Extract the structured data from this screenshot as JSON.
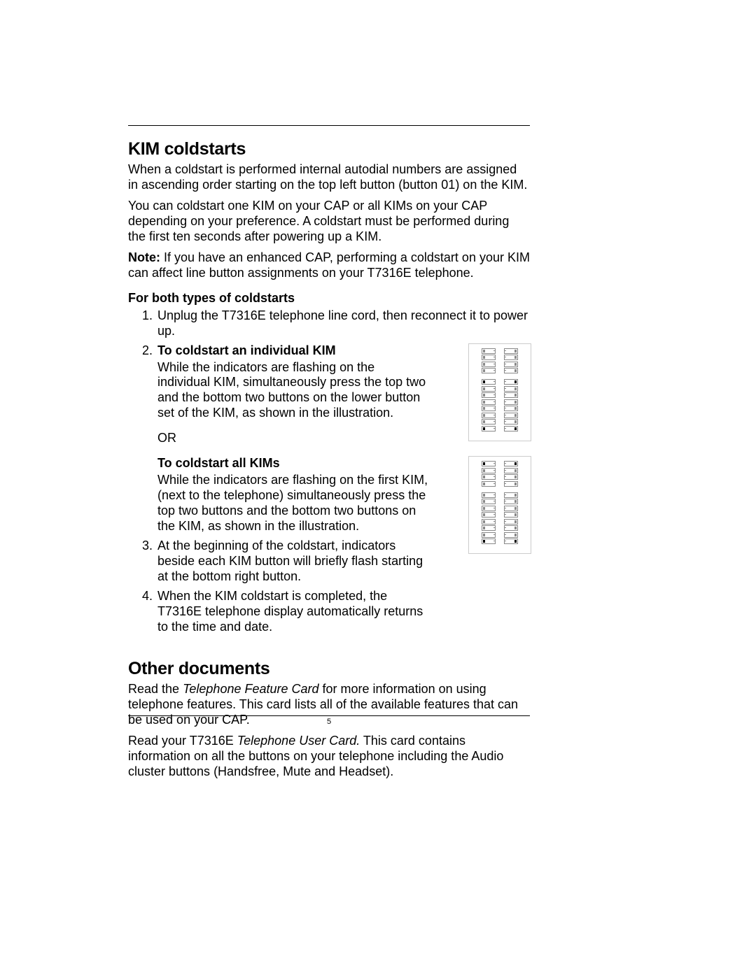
{
  "page": {
    "number": "5"
  },
  "kim": {
    "heading": "KIM coldstarts",
    "p1": "When a coldstart is performed internal autodial numbers are assigned in ascending order starting on the top left button (button 01) on the KIM.",
    "p2": "You can coldstart one KIM on your CAP or all KIMs on your CAP depending on your preference. A coldstart must be performed during the first ten seconds after powering up a KIM.",
    "note_label": "Note:",
    "note_text": "  If you have an enhanced CAP, performing a coldstart on your KIM can affect line button assignments on your T7316E telephone.",
    "both_heading": "For both types of coldstarts",
    "step1": "Unplug the T7316E telephone line cord, then reconnect it to power up.",
    "step2_title": "To coldstart an individual KIM",
    "step2_body": "While the indicators are flashing on the individual KIM, simultaneously press the top two and the bottom two buttons on the lower button set of the KIM, as shown in the illustration.",
    "or": "OR",
    "step2b_title": "To coldstart all KIMs",
    "step2b_body": "While the indicators are flashing on the first KIM, (next to the telephone) simultaneously press the top two buttons and the bottom two buttons on the KIM, as shown in the illustration.",
    "step3": "At the beginning of the coldstart, indicators beside each KIM button will briefly flash starting at the bottom right button.",
    "step4": "When the KIM coldstart is completed, the T7316E telephone display automatically returns to the time and date."
  },
  "other": {
    "heading": "Other documents",
    "p1a": "Read the ",
    "p1_em": "Telephone Feature Card",
    "p1b": " for more information on using telephone features. This card lists all of the available features that can be used on your CAP.",
    "p2a": "Read your T7316E ",
    "p2_em": "Telephone User Card.",
    "p2b": " This card contains information on all the buttons on your telephone including the Audio cluster buttons (Handsfree, Mute and Headset)."
  },
  "fig": {
    "top_rows": 4,
    "bottom_rows": 8,
    "colors": {
      "border": "#cccccc",
      "btn_border": "#888888",
      "led": "#888888",
      "led_filled": "#000000"
    }
  }
}
